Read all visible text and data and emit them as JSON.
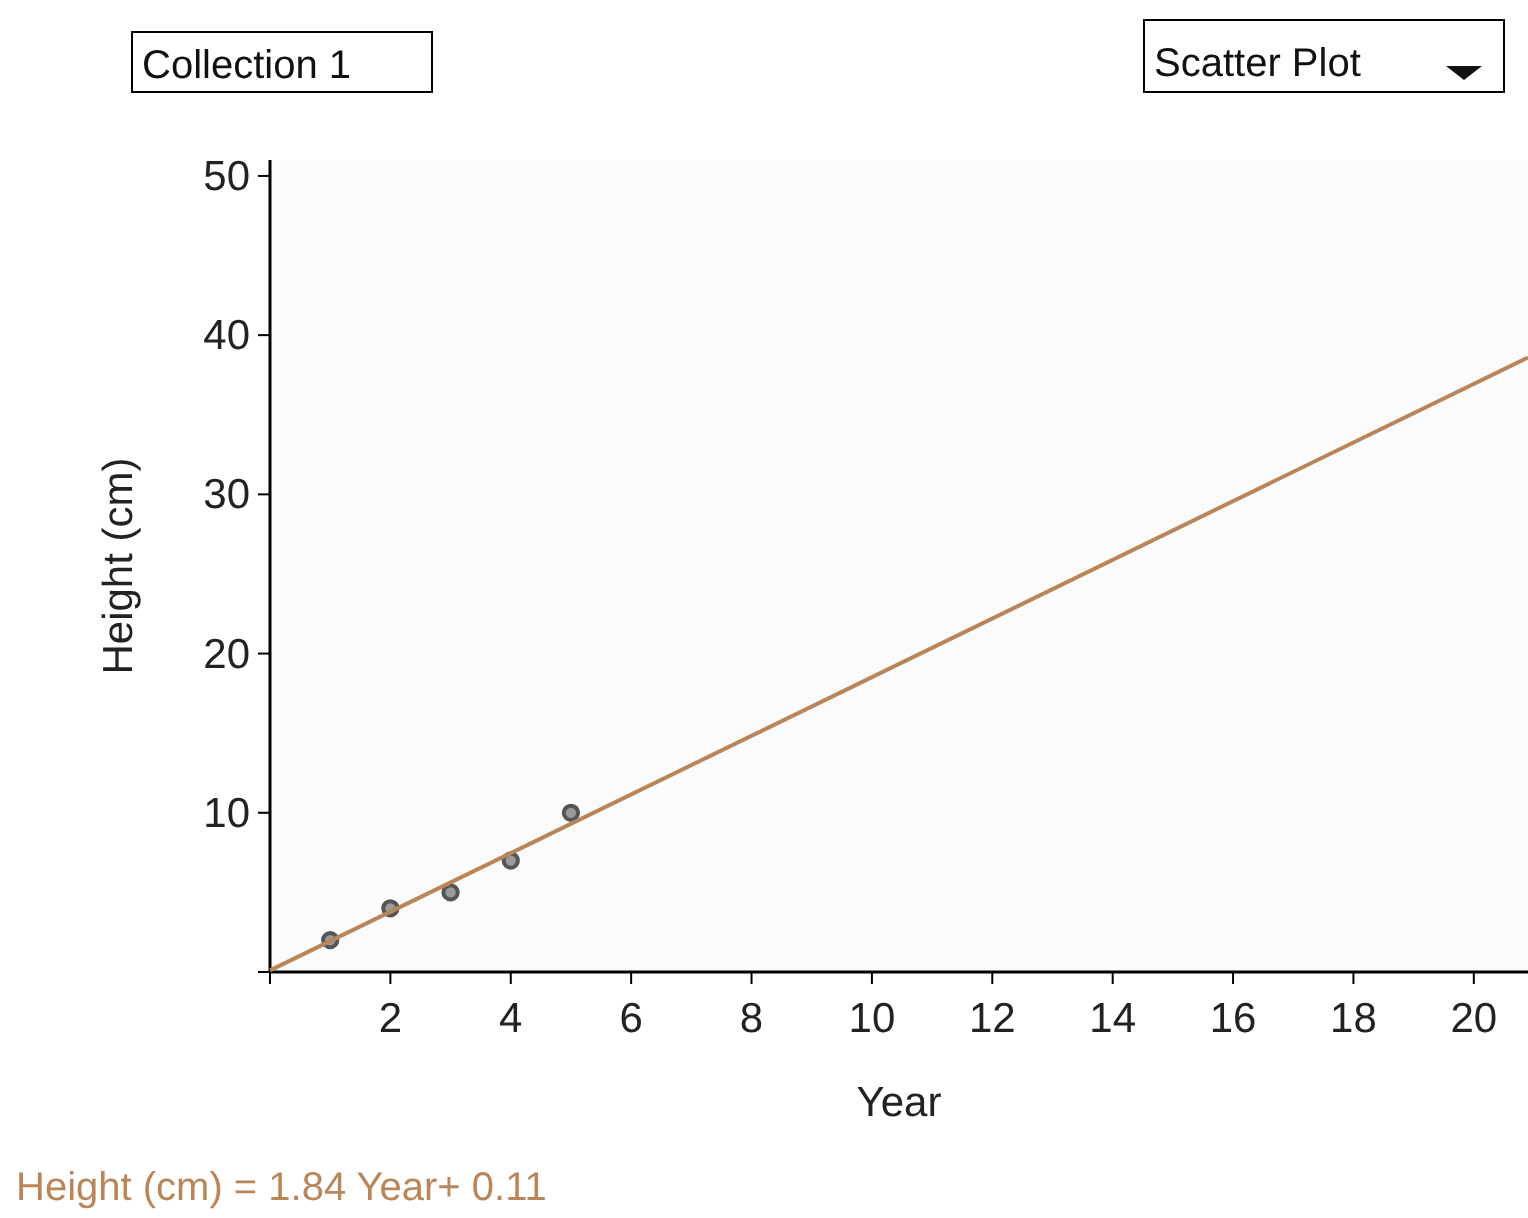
{
  "chart_data": {
    "type": "scatter",
    "xlabel": "Year",
    "ylabel": "Height (cm)",
    "xlim": [
      0,
      20.9
    ],
    "ylim": [
      0,
      51
    ],
    "xticks": [
      {
        "value": 0,
        "label": null
      },
      2,
      4,
      6,
      8,
      10,
      12,
      14,
      16,
      18,
      20
    ],
    "yticks": [
      {
        "value": 0,
        "label": null
      },
      10,
      20,
      30,
      40,
      50
    ],
    "grid": false,
    "series": [
      {
        "marker": "circle",
        "color": "#555555",
        "x": [
          1,
          2,
          3,
          4,
          5
        ],
        "values": [
          2,
          4,
          5,
          7,
          10
        ]
      },
      {
        "type": "line",
        "marker": "none",
        "color": "#b8865a",
        "x": [
          0,
          20.9
        ],
        "values": [
          0.1,
          38.6
        ]
      }
    ],
    "annotations": [
      "Collection 1",
      "Scatter Plot",
      "Height (cm) = 1.84 Year+ 0.11"
    ]
  }
}
